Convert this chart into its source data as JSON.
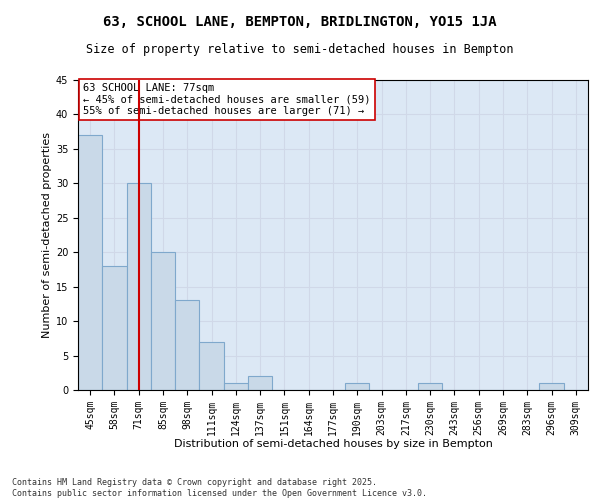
{
  "title1": "63, SCHOOL LANE, BEMPTON, BRIDLINGTON, YO15 1JA",
  "title2": "Size of property relative to semi-detached houses in Bempton",
  "xlabel": "Distribution of semi-detached houses by size in Bempton",
  "ylabel": "Number of semi-detached properties",
  "categories": [
    "45sqm",
    "58sqm",
    "71sqm",
    "85sqm",
    "98sqm",
    "111sqm",
    "124sqm",
    "137sqm",
    "151sqm",
    "164sqm",
    "177sqm",
    "190sqm",
    "203sqm",
    "217sqm",
    "230sqm",
    "243sqm",
    "256sqm",
    "269sqm",
    "283sqm",
    "296sqm",
    "309sqm"
  ],
  "values": [
    37,
    18,
    30,
    20,
    13,
    7,
    1,
    2,
    0,
    0,
    0,
    1,
    0,
    0,
    1,
    0,
    0,
    0,
    0,
    1,
    0
  ],
  "bar_color": "#c9d9e8",
  "bar_edge_color": "#7fa8cc",
  "bar_linewidth": 0.8,
  "vline_x": 2,
  "vline_color": "#cc0000",
  "vline_linewidth": 1.5,
  "annotation_text": "63 SCHOOL LANE: 77sqm\n← 45% of semi-detached houses are smaller (59)\n55% of semi-detached houses are larger (71) →",
  "annotation_box_color": "#ffffff",
  "annotation_box_edge": "#cc0000",
  "ylim": [
    0,
    45
  ],
  "yticks": [
    0,
    5,
    10,
    15,
    20,
    25,
    30,
    35,
    40,
    45
  ],
  "grid_color": "#d0d8e8",
  "bg_color": "#dce8f5",
  "footer": "Contains HM Land Registry data © Crown copyright and database right 2025.\nContains public sector information licensed under the Open Government Licence v3.0.",
  "title1_fontsize": 10,
  "title2_fontsize": 8.5,
  "xlabel_fontsize": 8,
  "ylabel_fontsize": 8,
  "tick_fontsize": 7,
  "annot_fontsize": 7.5,
  "footer_fontsize": 6
}
